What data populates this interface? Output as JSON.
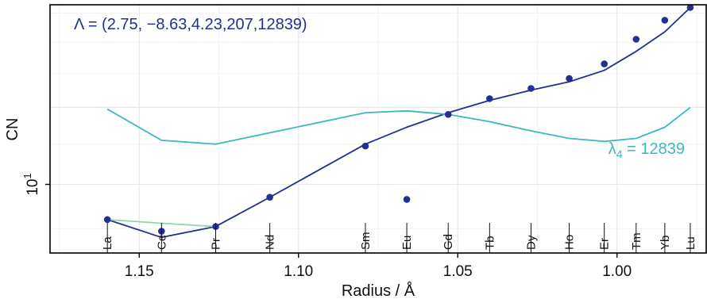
{
  "chart_data": {
    "type": "line",
    "xlabel": "Radius / Å",
    "ylabel": "CN",
    "y_scale": "log",
    "x_reversed": true,
    "xlim": [
      1.178,
      0.972
    ],
    "ylim": [
      8.5,
      15.3
    ],
    "x_ticks": [
      1.15,
      1.1,
      1.05,
      1.0
    ],
    "x_tick_labels": [
      "1.15",
      "1.10",
      "1.05",
      "1.00"
    ],
    "y_tick_value": 10,
    "y_tick_label_base": "10",
    "y_tick_label_exp": "1",
    "grid": true,
    "elements": [
      {
        "label": "La",
        "x": 1.16
      },
      {
        "label": "Ce",
        "x": 1.143
      },
      {
        "label": "Pr",
        "x": 1.126
      },
      {
        "label": "Nd",
        "x": 1.109
      },
      {
        "label": "Sm",
        "x": 1.079
      },
      {
        "label": "Eu",
        "x": 1.066
      },
      {
        "label": "Gd",
        "x": 1.053
      },
      {
        "label": "Tb",
        "x": 1.04
      },
      {
        "label": "Dy",
        "x": 1.027
      },
      {
        "label": "Ho",
        "x": 1.015
      },
      {
        "label": "Er",
        "x": 1.004
      },
      {
        "label": "Tm",
        "x": 0.994
      },
      {
        "label": "Yb",
        "x": 0.985
      },
      {
        "label": "Lu",
        "x": 0.977
      }
    ],
    "series": [
      {
        "kind": "points",
        "color": "#233090",
        "x": [
          1.16,
          1.143,
          1.126,
          1.109,
          1.079,
          1.066,
          1.053,
          1.04,
          1.027,
          1.015,
          1.004,
          0.994,
          0.985,
          0.977
        ],
        "y": [
          9.2,
          8.95,
          9.05,
          9.7,
          10.95,
          9.65,
          11.8,
          12.25,
          12.55,
          12.85,
          13.3,
          14.1,
          14.75,
          15.2
        ]
      },
      {
        "kind": "line",
        "color": "#233090",
        "x": [
          1.16,
          1.143,
          1.126,
          1.109,
          1.079,
          1.066,
          1.053,
          1.04,
          1.027,
          1.015,
          1.004,
          0.994,
          0.985,
          0.977
        ],
        "y": [
          9.2,
          8.82,
          9.05,
          9.7,
          11.0,
          11.45,
          11.85,
          12.2,
          12.5,
          12.75,
          13.1,
          13.7,
          14.35,
          15.2
        ]
      },
      {
        "kind": "line",
        "color": "#3db8bd",
        "x": [
          1.16,
          1.143,
          1.126,
          1.109,
          1.079,
          1.066,
          1.053,
          1.04,
          1.027,
          1.015,
          1.004,
          0.994,
          0.985,
          0.977
        ],
        "y": [
          11.95,
          11.1,
          11.0,
          11.3,
          11.85,
          11.9,
          11.8,
          11.6,
          11.35,
          11.15,
          11.07,
          11.15,
          11.45,
          12.0
        ]
      },
      {
        "kind": "line",
        "color": "#8fd6a8",
        "x": [
          1.16,
          1.143,
          1.126
        ],
        "y": [
          9.2,
          9.12,
          9.05
        ]
      }
    ],
    "annotations": {
      "lambda_text": "Λ = (2.75, −8.63,4.23,207,12839)",
      "lambda_color": "#233090",
      "lambda4_symbol": "λ",
      "lambda4_sub": "4",
      "lambda4_value": " = 12839",
      "lambda4_color": "#3db8bd"
    }
  }
}
